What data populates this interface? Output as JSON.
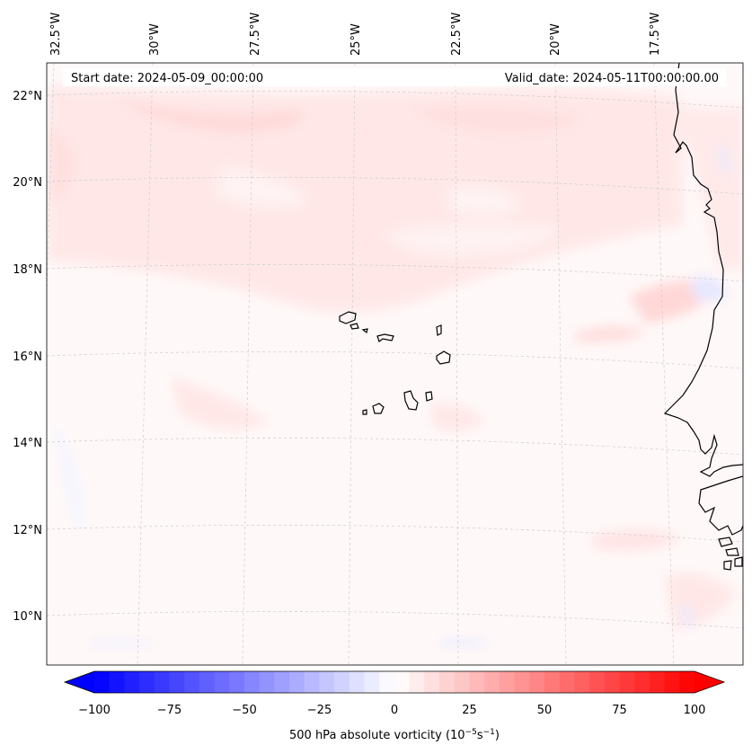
{
  "header": {
    "start_date": "Start date: 2024-05-09_00:00:00",
    "valid_date": "Valid_date: 2024-05-11T00:00:00.00"
  },
  "map": {
    "longitude_labels": [
      "32.5°W",
      "30°W",
      "27.5°W",
      "25°W",
      "22.5°W",
      "20°W",
      "17.5°W"
    ],
    "latitude_labels": [
      "22°N",
      "20°N",
      "18°N",
      "16°N",
      "14°N",
      "12°N",
      "10°N"
    ],
    "land_color": "#000000",
    "gridline_color": "#cccccc"
  },
  "colorbar": {
    "label": "500 hPa absolute vorticity (10",
    "label_exp1": "−5",
    "label_mid": "s",
    "label_exp2": "−1",
    "label_end": ")",
    "ticks": [
      "−100",
      "−75",
      "−50",
      "−25",
      "0",
      "25",
      "50",
      "75",
      "100"
    ],
    "min": -100,
    "max": 100,
    "step": 5,
    "low_color": "#0000ff",
    "mid_color": "#ffffff",
    "high_color": "#ff0000"
  }
}
